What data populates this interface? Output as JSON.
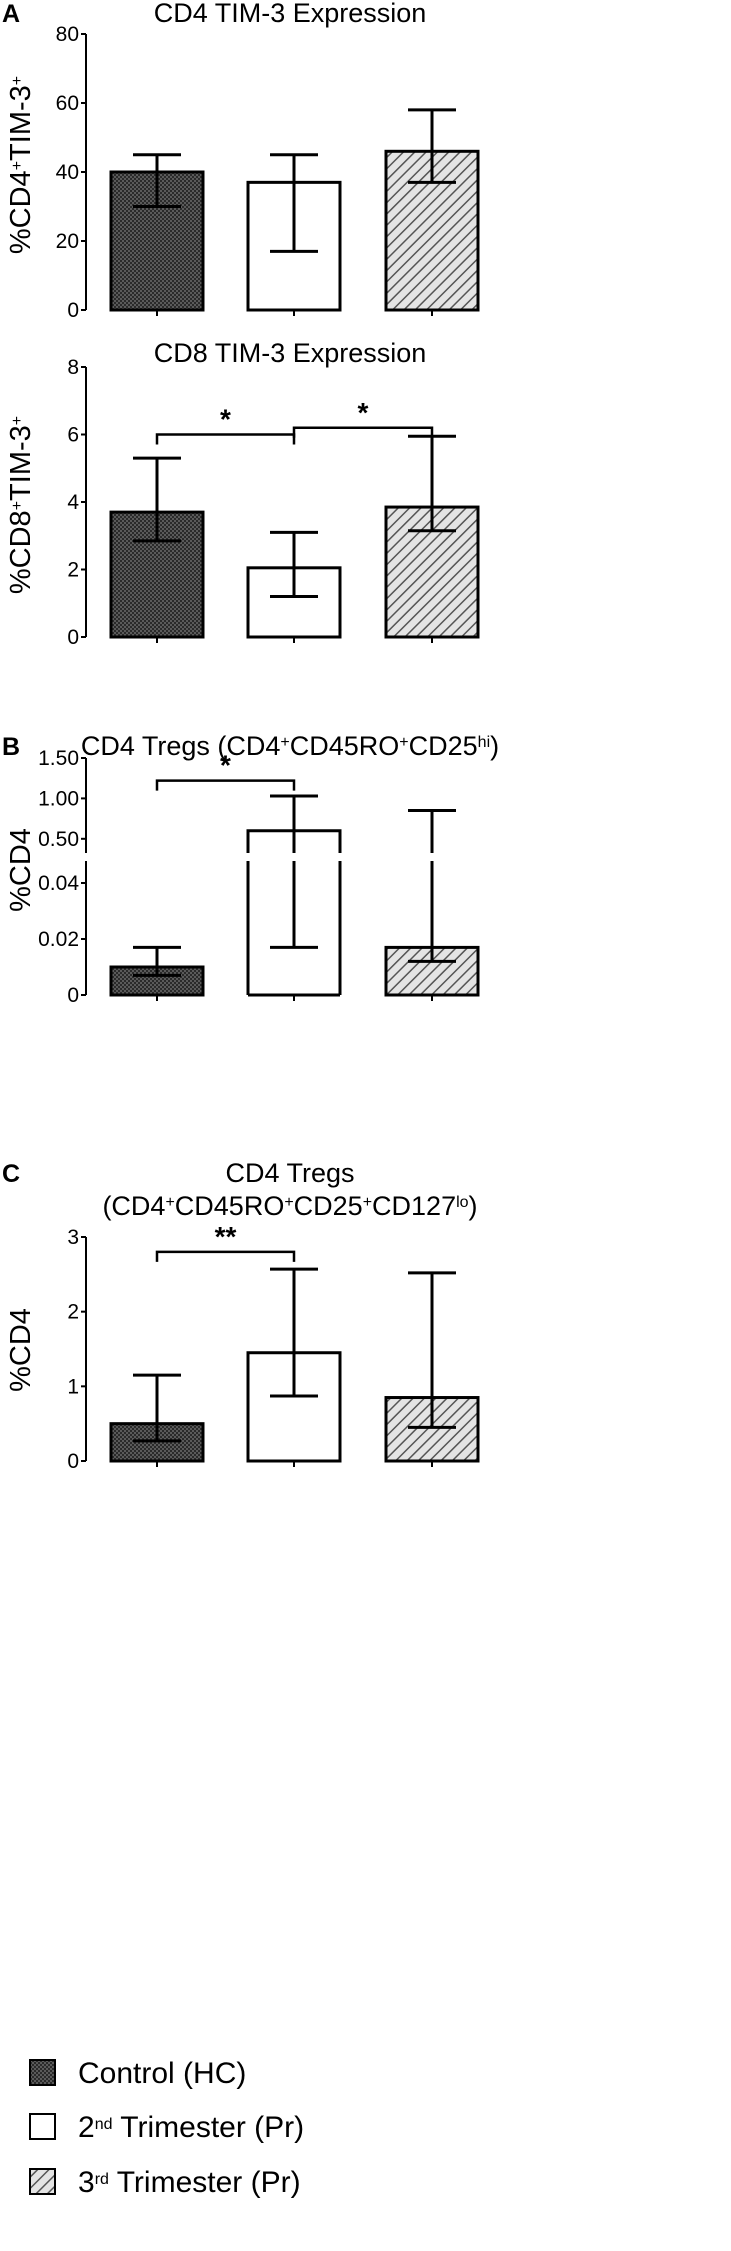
{
  "legend": [
    {
      "pattern": "dots",
      "label": "Control (HC)"
    },
    {
      "pattern": "none",
      "label_pre": "2",
      "label_sup": "nd",
      "label_post": " Trimester (Pr)"
    },
    {
      "pattern": "hatch",
      "label_pre": "3",
      "label_sup": "rd",
      "label_post": " Trimester (Pr)"
    }
  ],
  "chart_data": [
    {
      "type": "bar",
      "panel": "A",
      "title": "CD4 TIM-3 Expression",
      "ylabel": {
        "a": "%CD4",
        "a_sup": "+",
        "b": "TIM-3",
        "b_sup": "+"
      },
      "categories": [
        "Control (HC)",
        "2nd Trimester (Pr)",
        "3rd Trimester (Pr)"
      ],
      "values": [
        40,
        37,
        46
      ],
      "err_low": [
        30,
        17,
        37
      ],
      "err_high": [
        45,
        45,
        58
      ],
      "ylim": [
        0,
        80
      ],
      "yticks": [
        0,
        20,
        40,
        60,
        80
      ],
      "ytick_labels": [
        "0",
        "20",
        "40",
        "60",
        "80"
      ],
      "significance": []
    },
    {
      "type": "bar",
      "panel": "",
      "title": "CD8 TIM-3 Expression",
      "ylabel": {
        "a": "%CD8",
        "a_sup": "+",
        "b": "TIM-3",
        "b_sup": "+"
      },
      "categories": [
        "Control (HC)",
        "2nd Trimester (Pr)",
        "3rd Trimester (Pr)"
      ],
      "values": [
        3.7,
        2.05,
        3.85
      ],
      "err_low": [
        2.85,
        1.2,
        3.15
      ],
      "err_high": [
        5.3,
        3.1,
        5.95
      ],
      "ylim": [
        0,
        8
      ],
      "yticks": [
        0,
        2,
        4,
        6,
        8
      ],
      "ytick_labels": [
        "0",
        "2",
        "4",
        "6",
        "8"
      ],
      "significance": [
        {
          "from": 0,
          "to": 1,
          "label": "*",
          "level": 6.0
        },
        {
          "from": 1,
          "to": 2,
          "label": "*",
          "level": 6.2
        }
      ]
    },
    {
      "type": "bar",
      "panel": "B",
      "title": "CD4 Tregs (CD4",
      "title_parts": [
        {
          "t": "CD4 Tregs (CD4"
        },
        {
          "t": "+",
          "sup": true
        },
        {
          "t": "CD45RO"
        },
        {
          "t": "+",
          "sup": true
        },
        {
          "t": "CD25"
        },
        {
          "t": "hi",
          "sup": true
        },
        {
          "t": ")"
        }
      ],
      "ylabel": {
        "a": "%CD4"
      },
      "broken_axis": true,
      "categories": [
        "Control (HC)",
        "2nd Trimester (Pr)",
        "3rd Trimester (Pr)"
      ],
      "values": [
        0.01,
        0.6,
        0.017
      ],
      "err_low": [
        0.007,
        0.017,
        0.012
      ],
      "err_high": [
        0.017,
        1.03,
        0.85
      ],
      "ylim_lower": [
        0,
        0.05
      ],
      "ylim_upper": [
        0.25,
        1.5
      ],
      "yticks_lower": [
        0,
        0.02,
        0.04
      ],
      "ytick_labels_lower": [
        "0",
        "0.02",
        "0.04"
      ],
      "yticks_upper": [
        0.5,
        1.0,
        1.5
      ],
      "ytick_labels_upper": [
        "0.50",
        "1.00",
        "1.50"
      ],
      "significance": [
        {
          "from": 0,
          "to": 1,
          "label": "*",
          "level": 1.22
        }
      ]
    },
    {
      "type": "bar",
      "panel": "C",
      "title": "CD4 Tregs",
      "title2_parts": [
        {
          "t": "(CD4"
        },
        {
          "t": "+",
          "sup": true
        },
        {
          "t": "CD45RO"
        },
        {
          "t": "+",
          "sup": true
        },
        {
          "t": "CD25"
        },
        {
          "t": "+",
          "sup": true
        },
        {
          "t": "CD127"
        },
        {
          "t": "lo",
          "sup": true
        },
        {
          "t": ")"
        }
      ],
      "ylabel": {
        "a": "%CD4"
      },
      "categories": [
        "Control (HC)",
        "2nd Trimester (Pr)",
        "3rd Trimester (Pr)"
      ],
      "values": [
        0.5,
        1.45,
        0.85
      ],
      "err_low": [
        0.27,
        0.87,
        0.45
      ],
      "err_high": [
        1.15,
        2.57,
        2.52
      ],
      "ylim": [
        0,
        3
      ],
      "yticks": [
        0,
        1,
        2,
        3
      ],
      "ytick_labels": [
        "0",
        "1",
        "2",
        "3"
      ],
      "significance": [
        {
          "from": 0,
          "to": 1,
          "label": "**",
          "level": 2.8
        }
      ]
    }
  ]
}
